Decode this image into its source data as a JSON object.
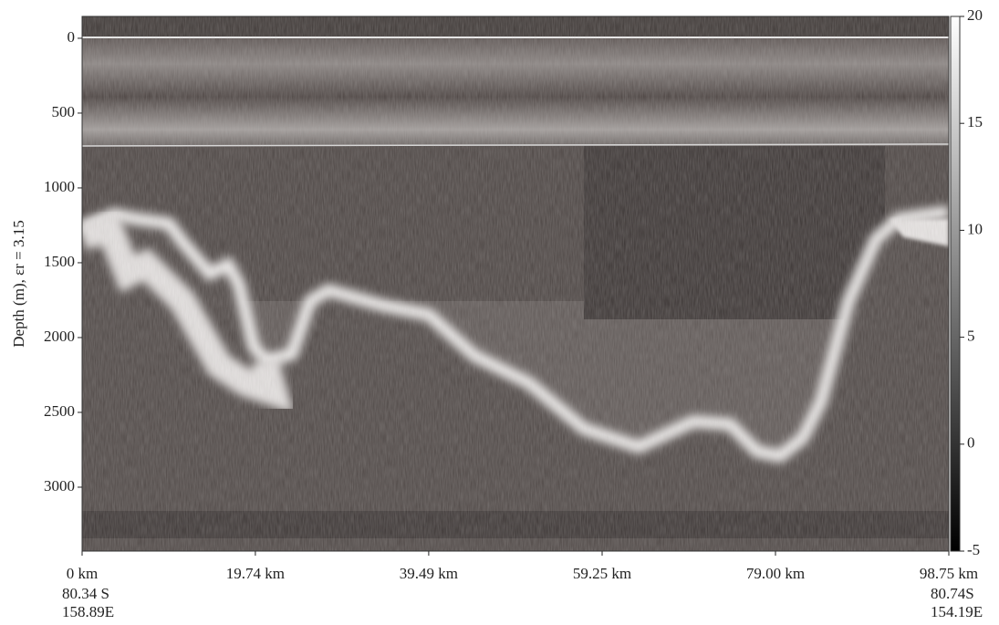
{
  "chart_data": {
    "type": "radargram",
    "ylabel": "Depth (m), εr = 3.15",
    "ylim": [
      -146,
      3427
    ],
    "y_inverted": true,
    "yticks": [
      0,
      500,
      1000,
      1500,
      2000,
      2500,
      3000
    ],
    "xlim": [
      0,
      98.75
    ],
    "xticks": [
      {
        "value": 0,
        "label": "0 km"
      },
      {
        "value": 19.74,
        "label": "19.74 km"
      },
      {
        "value": 39.49,
        "label": "39.49 km"
      },
      {
        "value": 59.25,
        "label": "59.25 km"
      },
      {
        "value": 79.0,
        "label": "79.00 km"
      },
      {
        "value": 98.75,
        "label": "98.75 km"
      }
    ],
    "start_location": [
      "80.34 S",
      "158.89E"
    ],
    "end_location": [
      "80.74S",
      "154.19E"
    ],
    "colorbar_lim": [
      -5,
      20
    ],
    "colorbar_ticks": [
      -5,
      0,
      5,
      10,
      15,
      20
    ]
  }
}
